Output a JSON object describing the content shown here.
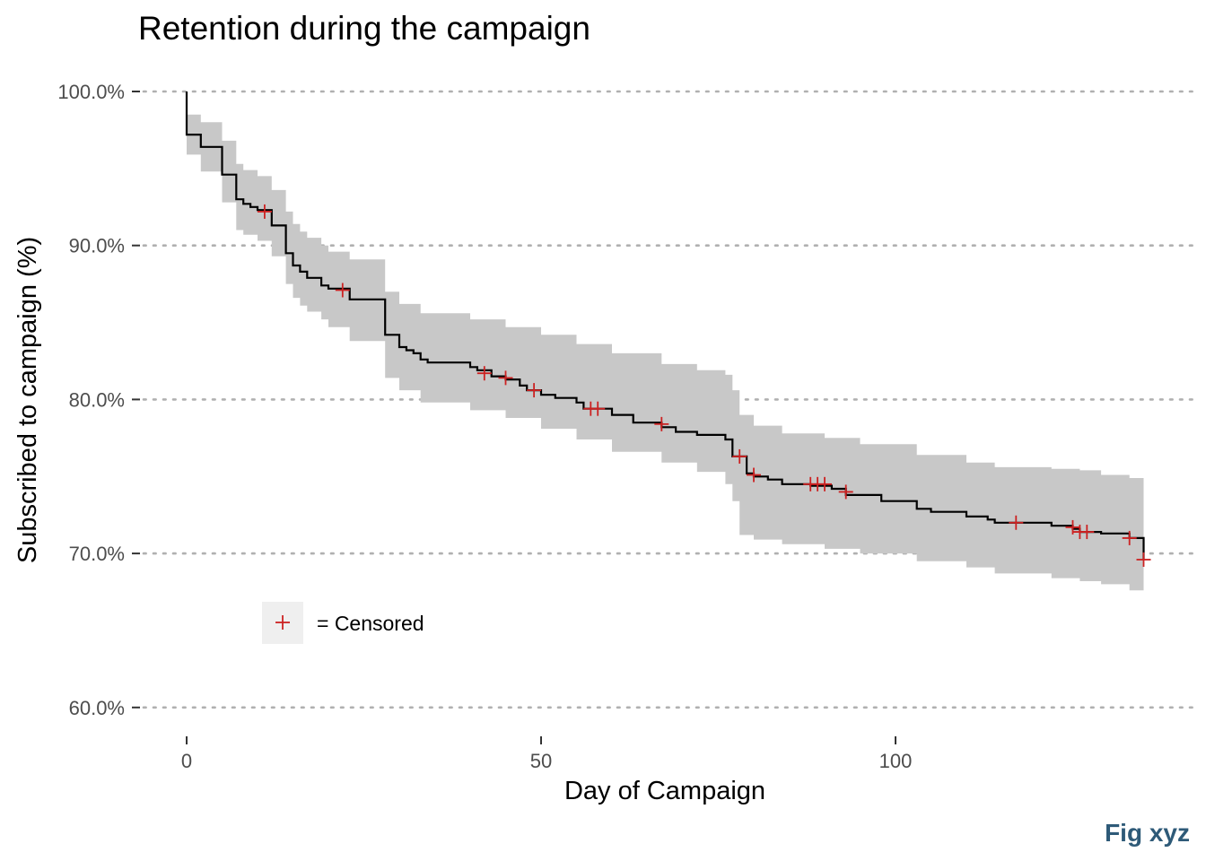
{
  "chart_data": {
    "type": "line",
    "title": "Retention during the campaign",
    "xlabel": "Day of Campaign",
    "ylabel": "Subscribed to campaign (%)",
    "caption": "Fig xyz",
    "xlim": [
      -6,
      142
    ],
    "ylim": [
      58.5,
      101.5
    ],
    "x_ticks": [
      0,
      50,
      100
    ],
    "x_tick_labels": [
      "0",
      "50",
      "100"
    ],
    "y_ticks": [
      60,
      70,
      80,
      90,
      100
    ],
    "y_tick_labels": [
      "60.0%",
      "70.0%",
      "80.0%",
      "90.0%",
      "100.0%"
    ],
    "grid": "horizontal dotted",
    "legend": {
      "position": "bottom-left",
      "label": "= Censored",
      "marker": "+"
    },
    "colors": {
      "survival_line": "#000000",
      "confidence_band": "#c8c8c8",
      "censor_marker": "#cc2222"
    },
    "series": [
      {
        "name": "survival",
        "steps": [
          [
            0,
            100.0
          ],
          [
            0,
            97.2
          ],
          [
            2,
            96.4
          ],
          [
            5,
            94.6
          ],
          [
            7,
            93.0
          ],
          [
            8,
            92.7
          ],
          [
            9,
            92.5
          ],
          [
            10,
            92.3
          ],
          [
            12,
            91.3
          ],
          [
            14,
            89.5
          ],
          [
            15,
            88.7
          ],
          [
            16,
            88.3
          ],
          [
            17,
            87.9
          ],
          [
            19,
            87.4
          ],
          [
            20,
            87.2
          ],
          [
            23,
            86.5
          ],
          [
            28,
            84.2
          ],
          [
            30,
            83.4
          ],
          [
            31,
            83.2
          ],
          [
            32,
            83.0
          ],
          [
            33,
            82.6
          ],
          [
            34,
            82.4
          ],
          [
            40,
            82.1
          ],
          [
            41,
            81.9
          ],
          [
            43,
            81.5
          ],
          [
            45,
            81.3
          ],
          [
            47,
            80.9
          ],
          [
            48,
            80.6
          ],
          [
            50,
            80.3
          ],
          [
            52,
            80.1
          ],
          [
            55,
            79.8
          ],
          [
            56,
            79.4
          ],
          [
            60,
            79.0
          ],
          [
            63,
            78.5
          ],
          [
            67,
            78.2
          ],
          [
            69,
            77.9
          ],
          [
            72,
            77.7
          ],
          [
            76,
            77.4
          ],
          [
            77,
            76.3
          ],
          [
            79,
            75.2
          ],
          [
            80,
            75.0
          ],
          [
            82,
            74.8
          ],
          [
            84,
            74.5
          ],
          [
            88,
            74.4
          ],
          [
            91,
            74.2
          ],
          [
            93,
            73.8
          ],
          [
            98,
            73.4
          ],
          [
            103,
            72.9
          ],
          [
            105,
            72.7
          ],
          [
            110,
            72.4
          ],
          [
            113,
            72.2
          ],
          [
            114,
            72.0
          ],
          [
            122,
            71.8
          ],
          [
            125,
            71.6
          ],
          [
            126,
            71.4
          ],
          [
            129,
            71.3
          ],
          [
            133,
            71.0
          ],
          [
            135,
            69.6
          ]
        ],
        "end_x": 135
      }
    ],
    "confidence_band": {
      "x": [
        0,
        2,
        5,
        7,
        8,
        10,
        12,
        14,
        15,
        16,
        17,
        19,
        20,
        23,
        28,
        30,
        33,
        40,
        45,
        50,
        55,
        60,
        67,
        72,
        76,
        77,
        78,
        80,
        84,
        90,
        95,
        103,
        110,
        114,
        122,
        126,
        129,
        133,
        135
      ],
      "lower": [
        95.9,
        94.8,
        92.8,
        91.0,
        90.7,
        90.3,
        89.3,
        87.5,
        86.6,
        86.1,
        85.7,
        85.2,
        84.7,
        83.8,
        81.4,
        80.6,
        79.8,
        79.3,
        78.8,
        78.1,
        77.4,
        76.6,
        75.9,
        75.3,
        74.5,
        73.4,
        71.2,
        70.9,
        70.6,
        70.3,
        70.0,
        69.5,
        69.1,
        68.7,
        68.4,
        68.2,
        68.0,
        67.6,
        66.0
      ],
      "upper": [
        98.5,
        98.0,
        96.8,
        95.3,
        94.9,
        94.5,
        93.6,
        92.2,
        91.4,
        90.9,
        90.5,
        90.0,
        89.6,
        89.1,
        87.0,
        86.2,
        85.6,
        85.2,
        84.7,
        84.2,
        83.6,
        83.0,
        82.3,
        81.9,
        81.6,
        80.6,
        79.0,
        78.3,
        77.8,
        77.5,
        77.1,
        76.4,
        75.9,
        75.6,
        75.5,
        75.4,
        75.1,
        74.9,
        73.2
      ]
    },
    "censored": [
      [
        11,
        92.2
      ],
      [
        22,
        87.1
      ],
      [
        42,
        81.7
      ],
      [
        45,
        81.4
      ],
      [
        49,
        80.6
      ],
      [
        57,
        79.4
      ],
      [
        58,
        79.4
      ],
      [
        67,
        78.4
      ],
      [
        78,
        76.3
      ],
      [
        80,
        75.1
      ],
      [
        88,
        74.5
      ],
      [
        89,
        74.5
      ],
      [
        90,
        74.5
      ],
      [
        93,
        74.0
      ],
      [
        117,
        72.0
      ],
      [
        125,
        71.7
      ],
      [
        126,
        71.4
      ],
      [
        127,
        71.4
      ],
      [
        133,
        71.0
      ],
      [
        135,
        69.6
      ]
    ]
  }
}
